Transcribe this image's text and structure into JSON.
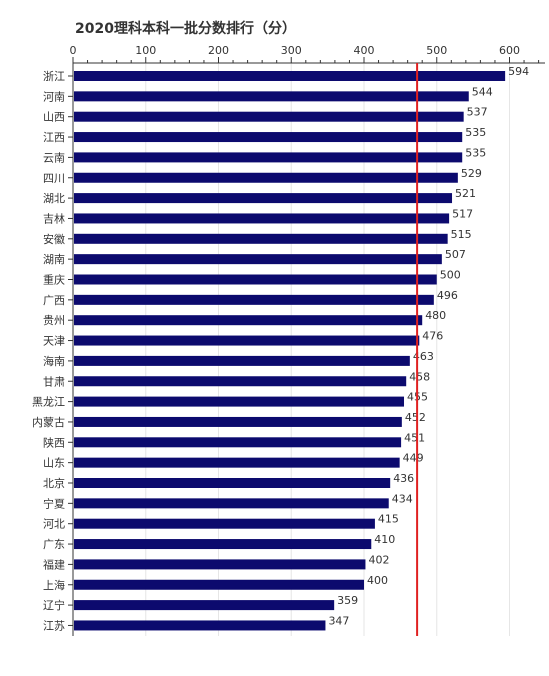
{
  "chart_data": {
    "type": "bar",
    "orientation": "horizontal",
    "title": "2020理科本科一批分数排行（分）",
    "categories": [
      "浙江",
      "河南",
      "山西",
      "江西",
      "云南",
      "四川",
      "湖北",
      "吉林",
      "安徽",
      "湖南",
      "重庆",
      "广西",
      "贵州",
      "天津",
      "海南",
      "甘肃",
      "黑龙江",
      "内蒙古",
      "陕西",
      "山东",
      "北京",
      "宁夏",
      "河北",
      "广东",
      "福建",
      "上海",
      "辽宁",
      "江苏"
    ],
    "values": [
      594,
      544,
      537,
      535,
      535,
      529,
      521,
      517,
      515,
      507,
      500,
      496,
      480,
      476,
      463,
      458,
      455,
      452,
      451,
      449,
      436,
      434,
      415,
      410,
      402,
      400,
      359,
      347
    ],
    "xlim": [
      0,
      650
    ],
    "xticks": [
      0,
      100,
      200,
      300,
      400,
      500,
      600
    ],
    "reference_line": 473,
    "grid": true,
    "colors": {
      "bar": "#0c0a6e",
      "reference_line": "#e02020",
      "grid": "#e6e6e6",
      "axis": "#333333"
    }
  }
}
